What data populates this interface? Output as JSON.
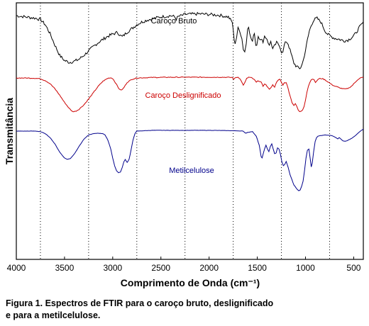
{
  "chart_data": {
    "type": "line",
    "xlabel": "Comprimento de Onda (cm⁻¹)",
    "ylabel": "Transmitância",
    "xlim": [
      4000,
      400
    ],
    "x_reversed": true,
    "x_ticks": [
      4000,
      3500,
      3000,
      2500,
      2000,
      1500,
      1000,
      500
    ],
    "x_tick_labels": [
      "4000",
      "3500",
      "3000",
      "2500",
      "2000",
      "1500",
      "1000",
      "500"
    ],
    "reference_lines": [
      3750,
      3250,
      2750,
      2250,
      1750,
      1250,
      750
    ],
    "grid": false,
    "ylim": [
      0,
      1
    ],
    "series": [
      {
        "name": "Caroço Bruto",
        "color": "#000000",
        "noise": 0.006,
        "points": [
          [
            4000,
            0.95
          ],
          [
            3900,
            0.945
          ],
          [
            3800,
            0.94
          ],
          [
            3750,
            0.935
          ],
          [
            3700,
            0.915
          ],
          [
            3650,
            0.88
          ],
          [
            3600,
            0.835
          ],
          [
            3550,
            0.795
          ],
          [
            3500,
            0.775
          ],
          [
            3450,
            0.768
          ],
          [
            3400,
            0.772
          ],
          [
            3350,
            0.78
          ],
          [
            3300,
            0.795
          ],
          [
            3250,
            0.812
          ],
          [
            3200,
            0.83
          ],
          [
            3150,
            0.845
          ],
          [
            3100,
            0.858
          ],
          [
            3050,
            0.87
          ],
          [
            3000,
            0.878
          ],
          [
            2950,
            0.885
          ],
          [
            2920,
            0.872
          ],
          [
            2900,
            0.868
          ],
          [
            2880,
            0.875
          ],
          [
            2850,
            0.886
          ],
          [
            2800,
            0.9
          ],
          [
            2750,
            0.915
          ],
          [
            2700,
            0.925
          ],
          [
            2650,
            0.932
          ],
          [
            2600,
            0.937
          ],
          [
            2500,
            0.945
          ],
          [
            2400,
            0.95
          ],
          [
            2360,
            0.946
          ],
          [
            2340,
            0.937
          ],
          [
            2320,
            0.946
          ],
          [
            2250,
            0.955
          ],
          [
            2100,
            0.957
          ],
          [
            2000,
            0.955
          ],
          [
            1900,
            0.952
          ],
          [
            1800,
            0.945
          ],
          [
            1760,
            0.925
          ],
          [
            1740,
            0.86
          ],
          [
            1730,
            0.842
          ],
          [
            1715,
            0.865
          ],
          [
            1700,
            0.9
          ],
          [
            1680,
            0.89
          ],
          [
            1660,
            0.86
          ],
          [
            1645,
            0.82
          ],
          [
            1630,
            0.81
          ],
          [
            1615,
            0.84
          ],
          [
            1600,
            0.9
          ],
          [
            1590,
            0.91
          ],
          [
            1570,
            0.865
          ],
          [
            1550,
            0.85
          ],
          [
            1530,
            0.885
          ],
          [
            1515,
            0.835
          ],
          [
            1505,
            0.838
          ],
          [
            1490,
            0.87
          ],
          [
            1460,
            0.855
          ],
          [
            1440,
            0.85
          ],
          [
            1425,
            0.87
          ],
          [
            1400,
            0.86
          ],
          [
            1375,
            0.832
          ],
          [
            1360,
            0.85
          ],
          [
            1340,
            0.82
          ],
          [
            1320,
            0.832
          ],
          [
            1300,
            0.845
          ],
          [
            1270,
            0.835
          ],
          [
            1250,
            0.81
          ],
          [
            1235,
            0.805
          ],
          [
            1220,
            0.835
          ],
          [
            1200,
            0.85
          ],
          [
            1180,
            0.84
          ],
          [
            1160,
            0.815
          ],
          [
            1140,
            0.79
          ],
          [
            1120,
            0.765
          ],
          [
            1100,
            0.755
          ],
          [
            1080,
            0.748
          ],
          [
            1060,
            0.745
          ],
          [
            1050,
            0.748
          ],
          [
            1035,
            0.76
          ],
          [
            1020,
            0.78
          ],
          [
            1000,
            0.815
          ],
          [
            980,
            0.855
          ],
          [
            960,
            0.89
          ],
          [
            940,
            0.912
          ],
          [
            920,
            0.93
          ],
          [
            900,
            0.937
          ],
          [
            880,
            0.94
          ],
          [
            860,
            0.932
          ],
          [
            840,
            0.925
          ],
          [
            820,
            0.91
          ],
          [
            800,
            0.892
          ],
          [
            770,
            0.878
          ],
          [
            740,
            0.87
          ],
          [
            700,
            0.862
          ],
          [
            650,
            0.858
          ],
          [
            600,
            0.852
          ],
          [
            560,
            0.855
          ],
          [
            520,
            0.865
          ],
          [
            480,
            0.88
          ],
          [
            440,
            0.905
          ],
          [
            400,
            0.925
          ]
        ]
      },
      {
        "name": "Caroço Deslignificado",
        "color": "#cc0000",
        "noise": 0.0015,
        "points": [
          [
            4000,
            0.707
          ],
          [
            3900,
            0.707
          ],
          [
            3800,
            0.706
          ],
          [
            3750,
            0.704
          ],
          [
            3700,
            0.697
          ],
          [
            3650,
            0.685
          ],
          [
            3600,
            0.665
          ],
          [
            3550,
            0.64
          ],
          [
            3500,
            0.612
          ],
          [
            3450,
            0.588
          ],
          [
            3420,
            0.577
          ],
          [
            3400,
            0.576
          ],
          [
            3380,
            0.578
          ],
          [
            3350,
            0.585
          ],
          [
            3300,
            0.602
          ],
          [
            3250,
            0.625
          ],
          [
            3200,
            0.65
          ],
          [
            3150,
            0.675
          ],
          [
            3100,
            0.695
          ],
          [
            3050,
            0.706
          ],
          [
            3020,
            0.708
          ],
          [
            3000,
            0.705
          ],
          [
            2970,
            0.688
          ],
          [
            2940,
            0.668
          ],
          [
            2920,
            0.66
          ],
          [
            2900,
            0.662
          ],
          [
            2880,
            0.672
          ],
          [
            2850,
            0.69
          ],
          [
            2800,
            0.702
          ],
          [
            2750,
            0.707
          ],
          [
            2600,
            0.709
          ],
          [
            2400,
            0.71
          ],
          [
            2200,
            0.71
          ],
          [
            2000,
            0.71
          ],
          [
            1850,
            0.71
          ],
          [
            1760,
            0.709
          ],
          [
            1745,
            0.703
          ],
          [
            1720,
            0.709
          ],
          [
            1700,
            0.71
          ],
          [
            1680,
            0.705
          ],
          [
            1660,
            0.69
          ],
          [
            1645,
            0.68
          ],
          [
            1630,
            0.688
          ],
          [
            1610,
            0.705
          ],
          [
            1590,
            0.71
          ],
          [
            1560,
            0.708
          ],
          [
            1530,
            0.7
          ],
          [
            1510,
            0.69
          ],
          [
            1490,
            0.697
          ],
          [
            1460,
            0.69
          ],
          [
            1440,
            0.675
          ],
          [
            1425,
            0.685
          ],
          [
            1410,
            0.68
          ],
          [
            1390,
            0.67
          ],
          [
            1375,
            0.662
          ],
          [
            1360,
            0.67
          ],
          [
            1340,
            0.68
          ],
          [
            1320,
            0.672
          ],
          [
            1300,
            0.69
          ],
          [
            1280,
            0.7
          ],
          [
            1265,
            0.702
          ],
          [
            1250,
            0.69
          ],
          [
            1235,
            0.68
          ],
          [
            1220,
            0.688
          ],
          [
            1200,
            0.69
          ],
          [
            1180,
            0.665
          ],
          [
            1160,
            0.638
          ],
          [
            1140,
            0.612
          ],
          [
            1120,
            0.6
          ],
          [
            1105,
            0.606
          ],
          [
            1090,
            0.596
          ],
          [
            1075,
            0.582
          ],
          [
            1060,
            0.575
          ],
          [
            1045,
            0.578
          ],
          [
            1030,
            0.583
          ],
          [
            1015,
            0.597
          ],
          [
            1000,
            0.622
          ],
          [
            985,
            0.652
          ],
          [
            970,
            0.675
          ],
          [
            955,
            0.69
          ],
          [
            940,
            0.7
          ],
          [
            925,
            0.704
          ],
          [
            910,
            0.701
          ],
          [
            897,
            0.688
          ],
          [
            885,
            0.695
          ],
          [
            870,
            0.702
          ],
          [
            850,
            0.705
          ],
          [
            820,
            0.704
          ],
          [
            790,
            0.698
          ],
          [
            760,
            0.69
          ],
          [
            730,
            0.682
          ],
          [
            700,
            0.676
          ],
          [
            670,
            0.672
          ],
          [
            640,
            0.668
          ],
          [
            610,
            0.665
          ],
          [
            580,
            0.664
          ],
          [
            550,
            0.668
          ],
          [
            520,
            0.676
          ],
          [
            490,
            0.688
          ],
          [
            460,
            0.7
          ],
          [
            430,
            0.707
          ],
          [
            400,
            0.71
          ]
        ]
      },
      {
        "name": "Metilcelulose",
        "color": "#00008b",
        "noise": 0.0005,
        "points": [
          [
            4000,
            0.5
          ],
          [
            3900,
            0.5
          ],
          [
            3800,
            0.5
          ],
          [
            3750,
            0.498
          ],
          [
            3700,
            0.49
          ],
          [
            3650,
            0.475
          ],
          [
            3600,
            0.45
          ],
          [
            3550,
            0.418
          ],
          [
            3500,
            0.395
          ],
          [
            3470,
            0.39
          ],
          [
            3440,
            0.393
          ],
          [
            3400,
            0.41
          ],
          [
            3350,
            0.44
          ],
          [
            3300,
            0.468
          ],
          [
            3250,
            0.485
          ],
          [
            3200,
            0.49
          ],
          [
            3150,
            0.492
          ],
          [
            3100,
            0.49
          ],
          [
            3080,
            0.485
          ],
          [
            3050,
            0.465
          ],
          [
            3020,
            0.43
          ],
          [
            3000,
            0.395
          ],
          [
            2980,
            0.365
          ],
          [
            2960,
            0.345
          ],
          [
            2940,
            0.338
          ],
          [
            2920,
            0.34
          ],
          [
            2900,
            0.36
          ],
          [
            2885,
            0.38
          ],
          [
            2870,
            0.39
          ],
          [
            2850,
            0.378
          ],
          [
            2830,
            0.39
          ],
          [
            2810,
            0.425
          ],
          [
            2790,
            0.465
          ],
          [
            2770,
            0.49
          ],
          [
            2750,
            0.5
          ],
          [
            2600,
            0.503
          ],
          [
            2400,
            0.503
          ],
          [
            2200,
            0.503
          ],
          [
            2000,
            0.503
          ],
          [
            1800,
            0.502
          ],
          [
            1700,
            0.501
          ],
          [
            1650,
            0.5
          ],
          [
            1620,
            0.492
          ],
          [
            1600,
            0.495
          ],
          [
            1550,
            0.498
          ],
          [
            1510,
            0.48
          ],
          [
            1480,
            0.445
          ],
          [
            1460,
            0.4
          ],
          [
            1450,
            0.395
          ],
          [
            1440,
            0.41
          ],
          [
            1425,
            0.43
          ],
          [
            1410,
            0.445
          ],
          [
            1395,
            0.43
          ],
          [
            1380,
            0.42
          ],
          [
            1365,
            0.44
          ],
          [
            1350,
            0.45
          ],
          [
            1335,
            0.43
          ],
          [
            1320,
            0.412
          ],
          [
            1305,
            0.415
          ],
          [
            1290,
            0.435
          ],
          [
            1275,
            0.43
          ],
          [
            1260,
            0.41
          ],
          [
            1245,
            0.38
          ],
          [
            1230,
            0.365
          ],
          [
            1215,
            0.37
          ],
          [
            1200,
            0.382
          ],
          [
            1180,
            0.358
          ],
          [
            1160,
            0.33
          ],
          [
            1140,
            0.31
          ],
          [
            1120,
            0.29
          ],
          [
            1100,
            0.28
          ],
          [
            1085,
            0.272
          ],
          [
            1070,
            0.268
          ],
          [
            1055,
            0.27
          ],
          [
            1040,
            0.285
          ],
          [
            1025,
            0.305
          ],
          [
            1010,
            0.345
          ],
          [
            995,
            0.395
          ],
          [
            980,
            0.425
          ],
          [
            965,
            0.43
          ],
          [
            950,
            0.39
          ],
          [
            940,
            0.36
          ],
          [
            930,
            0.375
          ],
          [
            915,
            0.42
          ],
          [
            900,
            0.46
          ],
          [
            885,
            0.475
          ],
          [
            870,
            0.48
          ],
          [
            850,
            0.482
          ],
          [
            820,
            0.484
          ],
          [
            790,
            0.485
          ],
          [
            760,
            0.484
          ],
          [
            720,
            0.482
          ],
          [
            690,
            0.476
          ],
          [
            665,
            0.47
          ],
          [
            650,
            0.475
          ],
          [
            630,
            0.468
          ],
          [
            610,
            0.462
          ],
          [
            590,
            0.46
          ],
          [
            570,
            0.462
          ],
          [
            550,
            0.466
          ],
          [
            520,
            0.472
          ],
          [
            490,
            0.48
          ],
          [
            460,
            0.49
          ],
          [
            430,
            0.5
          ],
          [
            400,
            0.508
          ]
        ]
      }
    ]
  },
  "caption": {
    "line1": "Figura 1. Espectros de FTIR para o caroço bruto, deslignificado",
    "line2": "e para a metilcelulose."
  }
}
